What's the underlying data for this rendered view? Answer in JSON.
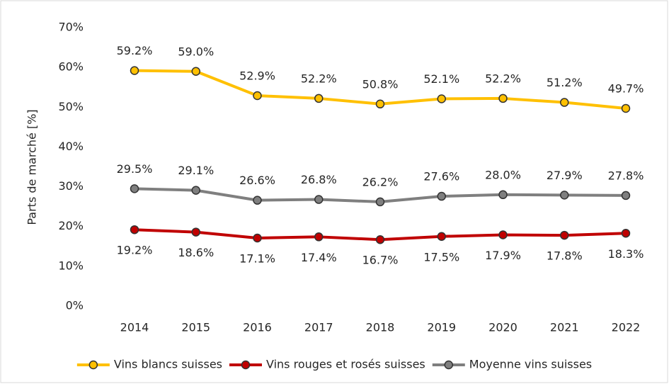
{
  "chart_data": {
    "type": "line",
    "y_axis_label": "Parts de marché [%]",
    "categories": [
      "2014",
      "2015",
      "2016",
      "2017",
      "2018",
      "2019",
      "2020",
      "2021",
      "2022"
    ],
    "series": [
      {
        "name": "Vins blancs suisses",
        "color": "#FFC000",
        "values": [
          59.2,
          59.0,
          52.9,
          52.2,
          50.8,
          52.1,
          52.2,
          51.2,
          49.7
        ],
        "value_labels": [
          "59.2%",
          "59.0%",
          "52.9%",
          "52.2%",
          "50.8%",
          "52.1%",
          "52.2%",
          "51.2%",
          "49.7%"
        ]
      },
      {
        "name": "Vins rouges et rosés suisses",
        "color": "#C00000",
        "values": [
          19.2,
          18.6,
          17.1,
          17.4,
          16.7,
          17.5,
          17.9,
          17.8,
          18.3
        ],
        "value_labels": [
          "19.2%",
          "18.6%",
          "17.1%",
          "17.4%",
          "16.7%",
          "17.5%",
          "17.9%",
          "17.8%",
          "18.3%"
        ]
      },
      {
        "name": "Moyenne vins suisses",
        "color": "#7F7F7F",
        "values": [
          29.5,
          29.1,
          26.6,
          26.8,
          26.2,
          27.6,
          28.0,
          27.9,
          27.8
        ],
        "value_labels": [
          "29.5%",
          "29.1%",
          "26.6%",
          "26.8%",
          "26.2%",
          "27.6%",
          "28.0%",
          "27.9%",
          "27.8%"
        ]
      }
    ],
    "ylim": [
      0,
      70
    ],
    "yticks": [
      {
        "value": 0,
        "label": "0%"
      },
      {
        "value": 10,
        "label": "10%"
      },
      {
        "value": 20,
        "label": "20%"
      },
      {
        "value": 30,
        "label": "30%"
      },
      {
        "value": 40,
        "label": "40%"
      },
      {
        "value": 50,
        "label": "50%"
      },
      {
        "value": 60,
        "label": "60%"
      },
      {
        "value": 70,
        "label": "70%"
      }
    ],
    "grid": false,
    "legend": "bottom"
  }
}
